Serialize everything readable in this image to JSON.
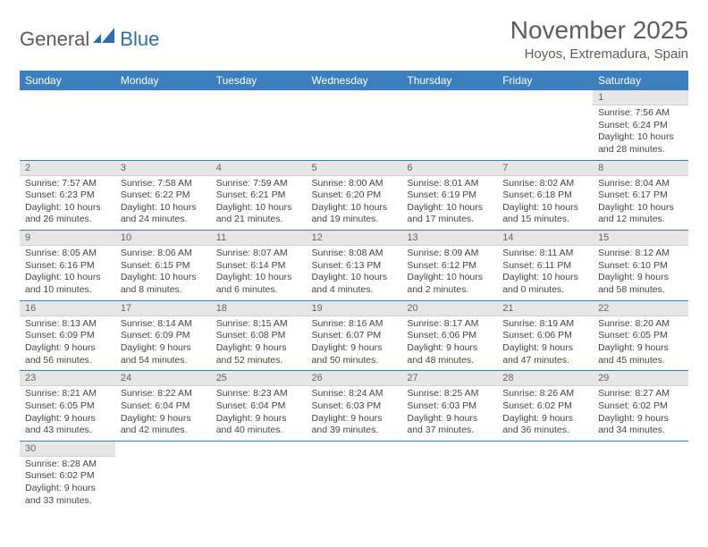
{
  "logo": {
    "part1": "General",
    "part2": "Blue"
  },
  "title": "November 2025",
  "location": "Hoyos, Extremadura, Spain",
  "colors": {
    "header_bg": "#3b7fbf",
    "header_fg": "#ffffff",
    "daynum_bg": "#e6e6e6",
    "row_divider": "#3b7fbf",
    "logo_accent": "#2f6fa8",
    "text": "#5c5c5c"
  },
  "weekdays": [
    "Sunday",
    "Monday",
    "Tuesday",
    "Wednesday",
    "Thursday",
    "Friday",
    "Saturday"
  ],
  "weeks": [
    [
      null,
      null,
      null,
      null,
      null,
      null,
      {
        "n": "1",
        "sr": "7:56 AM",
        "ss": "6:24 PM",
        "dl": "10 hours and 28 minutes."
      }
    ],
    [
      {
        "n": "2",
        "sr": "7:57 AM",
        "ss": "6:23 PM",
        "dl": "10 hours and 26 minutes."
      },
      {
        "n": "3",
        "sr": "7:58 AM",
        "ss": "6:22 PM",
        "dl": "10 hours and 24 minutes."
      },
      {
        "n": "4",
        "sr": "7:59 AM",
        "ss": "6:21 PM",
        "dl": "10 hours and 21 minutes."
      },
      {
        "n": "5",
        "sr": "8:00 AM",
        "ss": "6:20 PM",
        "dl": "10 hours and 19 minutes."
      },
      {
        "n": "6",
        "sr": "8:01 AM",
        "ss": "6:19 PM",
        "dl": "10 hours and 17 minutes."
      },
      {
        "n": "7",
        "sr": "8:02 AM",
        "ss": "6:18 PM",
        "dl": "10 hours and 15 minutes."
      },
      {
        "n": "8",
        "sr": "8:04 AM",
        "ss": "6:17 PM",
        "dl": "10 hours and 12 minutes."
      }
    ],
    [
      {
        "n": "9",
        "sr": "8:05 AM",
        "ss": "6:16 PM",
        "dl": "10 hours and 10 minutes."
      },
      {
        "n": "10",
        "sr": "8:06 AM",
        "ss": "6:15 PM",
        "dl": "10 hours and 8 minutes."
      },
      {
        "n": "11",
        "sr": "8:07 AM",
        "ss": "6:14 PM",
        "dl": "10 hours and 6 minutes."
      },
      {
        "n": "12",
        "sr": "8:08 AM",
        "ss": "6:13 PM",
        "dl": "10 hours and 4 minutes."
      },
      {
        "n": "13",
        "sr": "8:09 AM",
        "ss": "6:12 PM",
        "dl": "10 hours and 2 minutes."
      },
      {
        "n": "14",
        "sr": "8:11 AM",
        "ss": "6:11 PM",
        "dl": "10 hours and 0 minutes."
      },
      {
        "n": "15",
        "sr": "8:12 AM",
        "ss": "6:10 PM",
        "dl": "9 hours and 58 minutes."
      }
    ],
    [
      {
        "n": "16",
        "sr": "8:13 AM",
        "ss": "6:09 PM",
        "dl": "9 hours and 56 minutes."
      },
      {
        "n": "17",
        "sr": "8:14 AM",
        "ss": "6:09 PM",
        "dl": "9 hours and 54 minutes."
      },
      {
        "n": "18",
        "sr": "8:15 AM",
        "ss": "6:08 PM",
        "dl": "9 hours and 52 minutes."
      },
      {
        "n": "19",
        "sr": "8:16 AM",
        "ss": "6:07 PM",
        "dl": "9 hours and 50 minutes."
      },
      {
        "n": "20",
        "sr": "8:17 AM",
        "ss": "6:06 PM",
        "dl": "9 hours and 48 minutes."
      },
      {
        "n": "21",
        "sr": "8:19 AM",
        "ss": "6:06 PM",
        "dl": "9 hours and 47 minutes."
      },
      {
        "n": "22",
        "sr": "8:20 AM",
        "ss": "6:05 PM",
        "dl": "9 hours and 45 minutes."
      }
    ],
    [
      {
        "n": "23",
        "sr": "8:21 AM",
        "ss": "6:05 PM",
        "dl": "9 hours and 43 minutes."
      },
      {
        "n": "24",
        "sr": "8:22 AM",
        "ss": "6:04 PM",
        "dl": "9 hours and 42 minutes."
      },
      {
        "n": "25",
        "sr": "8:23 AM",
        "ss": "6:04 PM",
        "dl": "9 hours and 40 minutes."
      },
      {
        "n": "26",
        "sr": "8:24 AM",
        "ss": "6:03 PM",
        "dl": "9 hours and 39 minutes."
      },
      {
        "n": "27",
        "sr": "8:25 AM",
        "ss": "6:03 PM",
        "dl": "9 hours and 37 minutes."
      },
      {
        "n": "28",
        "sr": "8:26 AM",
        "ss": "6:02 PM",
        "dl": "9 hours and 36 minutes."
      },
      {
        "n": "29",
        "sr": "8:27 AM",
        "ss": "6:02 PM",
        "dl": "9 hours and 34 minutes."
      }
    ],
    [
      {
        "n": "30",
        "sr": "8:28 AM",
        "ss": "6:02 PM",
        "dl": "9 hours and 33 minutes."
      },
      null,
      null,
      null,
      null,
      null,
      null
    ]
  ],
  "labels": {
    "sunrise": "Sunrise:",
    "sunset": "Sunset:",
    "daylight": "Daylight:"
  }
}
